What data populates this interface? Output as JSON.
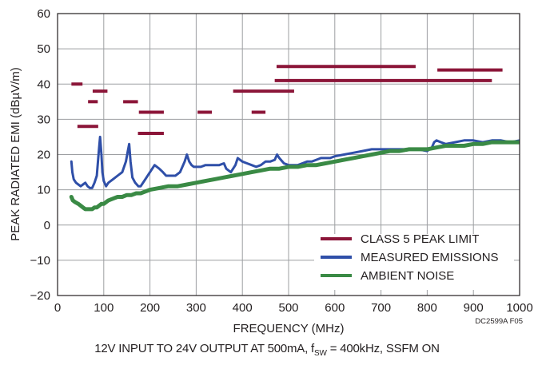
{
  "chart_data": {
    "type": "line",
    "xlabel": "FREQUENCY (MHz)",
    "ylabel": "PEAK RADIATED EMI (dBµV/m)",
    "xlim": [
      0,
      1000
    ],
    "ylim": [
      -20,
      60
    ],
    "x_ticks": [
      "0",
      "100",
      "200",
      "300",
      "400",
      "500",
      "600",
      "700",
      "800",
      "900",
      "1000"
    ],
    "y_ticks": [
      "60",
      "50",
      "40",
      "30",
      "20",
      "10",
      "0",
      "−10",
      "−20"
    ],
    "grid": true,
    "legend_position": "bottom-right",
    "colors": {
      "limit": "#8b1538",
      "measured": "#2f4fa8",
      "ambient": "#3a8a45",
      "grid": "#9d9fa2",
      "axis": "#231f20"
    },
    "series": [
      {
        "name": "CLASS 5 PEAK LIMIT",
        "color": "#8b1538",
        "segments": [
          {
            "x": [
              30,
              54
            ],
            "y": 40
          },
          {
            "x": [
              43,
              88
            ],
            "y": 28
          },
          {
            "x": [
              66,
              87
            ],
            "y": 35
          },
          {
            "x": [
              76,
              108
            ],
            "y": 38
          },
          {
            "x": [
              142,
              174
            ],
            "y": 35
          },
          {
            "x": [
              174,
              230
            ],
            "y": 26
          },
          {
            "x": [
              176,
              230
            ],
            "y": 32
          },
          {
            "x": [
              303,
              334
            ],
            "y": 32
          },
          {
            "x": [
              380,
              512
            ],
            "y": 38
          },
          {
            "x": [
              420,
              450
            ],
            "y": 32
          },
          {
            "x": [
              470,
              940
            ],
            "y": 41
          },
          {
            "x": [
              474,
              775
            ],
            "y": 45
          },
          {
            "x": [
              822,
              963
            ],
            "y": 44
          }
        ]
      },
      {
        "name": "MEASURED EMISSIONS",
        "color": "#2f4fa8",
        "x": [
          30,
          32,
          35,
          40,
          45,
          50,
          55,
          60,
          65,
          70,
          75,
          80,
          85,
          88,
          90,
          92,
          95,
          97,
          100,
          105,
          110,
          120,
          130,
          140,
          148,
          152,
          155,
          158,
          162,
          168,
          175,
          180,
          185,
          190,
          200,
          210,
          220,
          228,
          235,
          245,
          255,
          265,
          275,
          280,
          285,
          290,
          295,
          300,
          310,
          320,
          330,
          340,
          350,
          360,
          365,
          370,
          375,
          380,
          385,
          390,
          400,
          410,
          420,
          430,
          440,
          450,
          460,
          470,
          475,
          480,
          490,
          500,
          510,
          520,
          530,
          540,
          550,
          560,
          570,
          580,
          590,
          600,
          620,
          640,
          660,
          680,
          700,
          720,
          740,
          760,
          780,
          800,
          810,
          815,
          820,
          830,
          840,
          860,
          880,
          900,
          920,
          940,
          960,
          980,
          1000
        ],
        "y": [
          18,
          15,
          13,
          12,
          11.5,
          11,
          11.5,
          12,
          11,
          10.5,
          10.5,
          12,
          14,
          19,
          22,
          25,
          20,
          15,
          12.5,
          11,
          12,
          13,
          14,
          15,
          18,
          21,
          23,
          18,
          13.5,
          12,
          11,
          11,
          12,
          13,
          15,
          17,
          16,
          15,
          14,
          14,
          14,
          15,
          18,
          20,
          18,
          17,
          16.5,
          16.5,
          16.5,
          17,
          17,
          17,
          17,
          17.5,
          16,
          15.5,
          15,
          16,
          17,
          19,
          18,
          17.5,
          17,
          16.5,
          17,
          18,
          18,
          18.5,
          20,
          19,
          17.5,
          17,
          17,
          17,
          17.5,
          18,
          18,
          18.5,
          19,
          19,
          19,
          19.5,
          20,
          20.5,
          21,
          21.5,
          21.5,
          21.5,
          21.5,
          21.5,
          21.5,
          21,
          22,
          23.5,
          24,
          23.5,
          23,
          23.5,
          24,
          24,
          23.5,
          24,
          24,
          23.5,
          24
        ]
      },
      {
        "name": "AMBIENT NOISE",
        "color": "#3a8a45",
        "x": [
          30,
          33,
          38,
          45,
          50,
          55,
          60,
          65,
          70,
          75,
          80,
          85,
          90,
          95,
          100,
          110,
          120,
          130,
          140,
          150,
          160,
          170,
          180,
          190,
          200,
          220,
          240,
          260,
          280,
          300,
          320,
          340,
          360,
          380,
          400,
          420,
          440,
          460,
          480,
          500,
          520,
          540,
          560,
          580,
          600,
          620,
          640,
          660,
          680,
          700,
          720,
          740,
          760,
          780,
          800,
          820,
          840,
          860,
          880,
          900,
          920,
          940,
          960,
          980,
          1000
        ],
        "y": [
          8,
          7,
          6.5,
          6,
          5.5,
          5,
          4.5,
          4.5,
          4.5,
          4.5,
          5,
          5,
          5.5,
          6,
          6,
          7,
          7.5,
          8,
          8,
          8.5,
          8.5,
          9,
          9,
          9.5,
          10,
          10.5,
          11,
          11,
          11.5,
          12,
          12.5,
          13,
          13.5,
          14,
          14.5,
          15,
          15.5,
          16,
          16,
          16.5,
          16.5,
          17,
          17,
          17.5,
          18,
          18.5,
          19,
          19.5,
          20,
          20.5,
          21,
          21,
          21.5,
          21.5,
          21.5,
          22,
          22.5,
          22.5,
          22.5,
          23,
          23,
          23.5,
          23.5,
          23.5,
          23.5
        ]
      }
    ]
  },
  "doc_id": "DC2599A F05",
  "caption": {
    "prefix": "12V INPUT TO 24V OUTPUT AT 500mA, f",
    "sub": "SW",
    "suffix": " = 400kHz, SSFM ON"
  }
}
